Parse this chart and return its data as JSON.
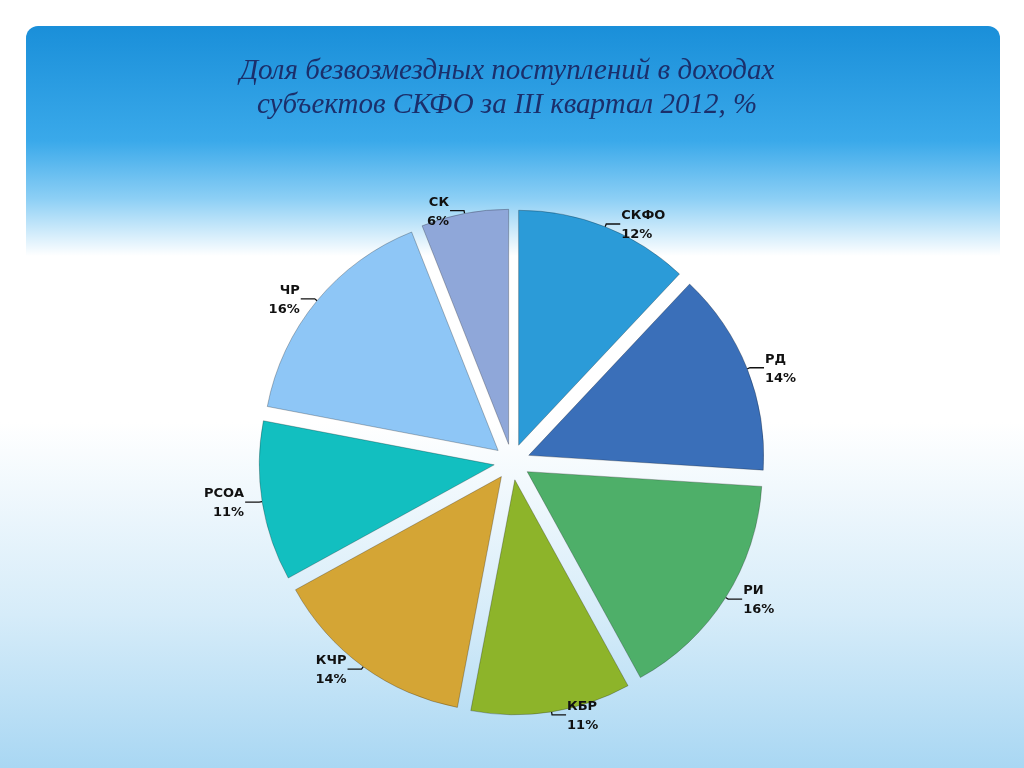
{
  "chart_data": {
    "type": "pie",
    "title": "Доля безвозмездных поступлений в доходах субъектов СКФО за III квартал 2012, %",
    "categories": [
      "СКФО",
      "РД",
      "РИ",
      "КБР",
      "КЧР",
      "РСОА",
      "ЧР",
      "СК"
    ],
    "values": [
      12,
      14,
      16,
      11,
      14,
      11,
      16,
      6
    ],
    "colors": [
      "#2b9bd8",
      "#3a6fb9",
      "#4eaf69",
      "#8db42a",
      "#d4a535",
      "#12bfc0",
      "#8ec6f6",
      "#8fa7d9"
    ],
    "value_labels": [
      "12%",
      "14%",
      "16%",
      "11%",
      "14%",
      "11%",
      "16%",
      "6%"
    ]
  }
}
